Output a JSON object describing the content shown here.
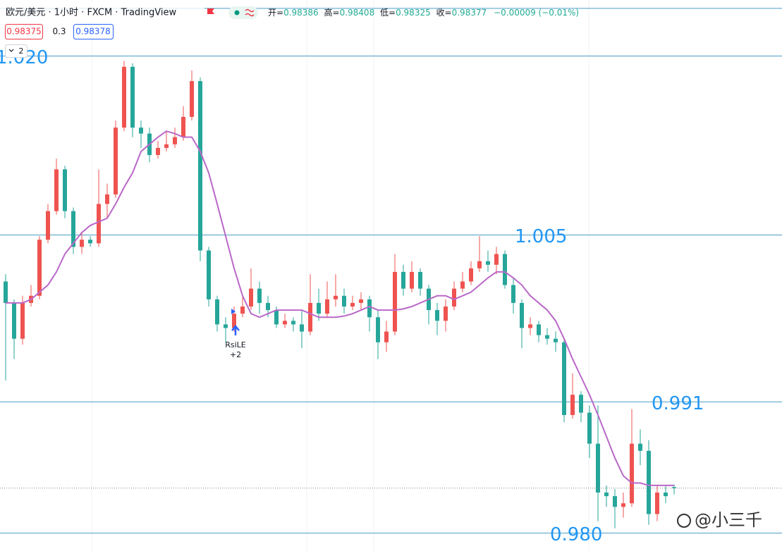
{
  "chart_data": {
    "type": "candlestick",
    "ylim": [
      0.9785,
      1.0247
    ],
    "up_color": "#ef5350",
    "down_color": "#26a69a",
    "open": [
      1.0011,
      0.9993,
      0.9963,
      0.9993,
      0.9999,
      1.0046,
      1.007,
      1.0105,
      1.007,
      1.004,
      1.0046,
      1.0043,
      1.0076,
      1.0084,
      1.014,
      1.0191,
      1.014,
      1.0135,
      1.0117,
      1.0123,
      1.0126,
      1.0132,
      1.0149,
      1.0179,
      1.0037,
      0.9996,
      0.9975,
      0.9972,
      0.9984,
      0.999,
      1.0005,
      0.9993,
      0.9987,
      0.9975,
      0.9978,
      0.9975,
      0.9969,
      0.9993,
      0.9984,
      0.9996,
      0.9999,
      0.999,
      0.9993,
      0.9996,
      0.9981,
      0.996,
      0.9969,
      1.0019,
      1.0005,
      1.0019,
      1.0005,
      0.9987,
      0.9978,
      0.999,
      1.0005,
      1.0011,
      1.0022,
      1.0028,
      1.0025,
      1.0034,
      1.0008,
      0.9993,
      0.9972,
      0.9975,
      0.9966,
      0.9963,
      0.996,
      0.9899,
      0.9916,
      0.9901,
      0.9875,
      0.9834,
      0.9831,
      0.9822,
      0.9825,
      0.9875,
      0.9869,
      0.9816,
      0.9834,
      0.98386
    ],
    "high": [
      1.0017,
      0.9996,
      0.9999,
      1.0008,
      1.0049,
      1.0076,
      1.0114,
      1.0108,
      1.0073,
      1.0052,
      1.0049,
      1.0105,
      1.0093,
      1.0146,
      1.0196,
      1.0194,
      1.0146,
      1.014,
      1.0129,
      1.0137,
      1.014,
      1.0158,
      1.0188,
      1.0182,
      1.004,
      0.9999,
      0.9981,
      0.999,
      0.9999,
      1.0022,
      1.0011,
      0.9999,
      0.999,
      0.9984,
      0.9981,
      0.9987,
      1.0017,
      1.0005,
      1.0011,
      1.0017,
      1.0005,
      0.9999,
      1.0002,
      0.9999,
      0.9987,
      0.9978,
      1.0034,
      1.0025,
      1.0028,
      1.0022,
      1.0008,
      0.9993,
      0.9996,
      1.0011,
      1.0019,
      1.0028,
      1.0049,
      1.0037,
      1.004,
      1.0037,
      1.0014,
      0.9996,
      0.9981,
      0.9978,
      0.9972,
      0.9969,
      0.9963,
      0.9934,
      0.9919,
      0.9907,
      0.9907,
      0.984,
      0.9837,
      0.9834,
      0.9904,
      0.9887,
      0.9878,
      0.984,
      0.984,
      0.98408
    ],
    "low": [
      0.9928,
      0.9946,
      0.9958,
      0.999,
      0.9996,
      1.0043,
      1.0067,
      1.0064,
      1.0034,
      1.0034,
      1.004,
      1.004,
      1.0064,
      1.0081,
      1.0137,
      1.0132,
      1.0123,
      1.0111,
      1.0114,
      1.012,
      1.0123,
      1.0129,
      1.0146,
      1.0028,
      0.999,
      0.9969,
      0.996,
      0.9969,
      0.9981,
      0.9987,
      0.9984,
      0.9981,
      0.9972,
      0.9972,
      0.9969,
      0.9955,
      0.9966,
      0.9978,
      0.9981,
      0.999,
      0.9984,
      0.9987,
      0.9987,
      0.9969,
      0.9946,
      0.9952,
      0.9966,
      0.9999,
      1.0002,
      0.9999,
      0.9975,
      0.9966,
      0.9969,
      0.9987,
      1.0002,
      1.0008,
      1.0019,
      1.0019,
      1.0017,
      1.0005,
      0.9984,
      0.9955,
      0.9966,
      0.996,
      0.9958,
      0.9952,
      0.9893,
      0.9896,
      0.9893,
      0.9863,
      0.981,
      0.9822,
      0.9804,
      0.9813,
      0.9822,
      0.9857,
      0.9807,
      0.981,
      0.9825,
      0.98325
    ],
    "close": [
      0.9993,
      0.9963,
      0.9993,
      0.9999,
      1.0046,
      1.007,
      1.0105,
      1.007,
      1.004,
      1.0046,
      1.0043,
      1.0076,
      1.0084,
      1.014,
      1.0191,
      1.014,
      1.0135,
      1.0117,
      1.0123,
      1.0126,
      1.0132,
      1.0149,
      1.0179,
      1.0037,
      0.9996,
      0.9975,
      0.9972,
      0.9984,
      0.999,
      1.0005,
      0.9993,
      0.9987,
      0.9975,
      0.9978,
      0.9975,
      0.9969,
      0.9993,
      0.9984,
      0.9996,
      0.9999,
      0.999,
      0.9993,
      0.9996,
      0.9981,
      0.996,
      0.9969,
      1.0019,
      1.0005,
      1.0019,
      1.0005,
      0.9987,
      0.9978,
      0.999,
      1.0005,
      1.0011,
      1.0022,
      1.0028,
      1.0025,
      1.0034,
      1.0008,
      0.9993,
      0.9972,
      0.9975,
      0.9966,
      0.9963,
      0.996,
      0.9899,
      0.9916,
      0.9901,
      0.9875,
      0.9834,
      0.9831,
      0.9822,
      0.9825,
      0.9875,
      0.9869,
      0.9816,
      0.9834,
      0.9831,
      0.98377
    ],
    "ma": {
      "color": "#ba68c8",
      "values": [
        0.9993,
        0.9993,
        0.9993,
        0.9996,
        1.0002,
        1.0008,
        1.0019,
        1.0034,
        1.0043,
        1.0052,
        1.0058,
        1.0061,
        1.0064,
        1.0076,
        1.009,
        1.0102,
        1.012,
        1.0126,
        1.0132,
        1.0137,
        1.0135,
        1.0132,
        1.0132,
        1.012,
        1.0102,
        1.0076,
        1.0049,
        1.0022,
        0.9999,
        0.9984,
        0.9981,
        0.9984,
        0.9987,
        0.9987,
        0.9987,
        0.9987,
        0.9984,
        0.9981,
        0.9981,
        0.9981,
        0.9982,
        0.9984,
        0.9987,
        0.999,
        0.9987,
        0.9987,
        0.9987,
        0.9988,
        0.999,
        0.9993,
        0.9996,
        0.9999,
        0.9999,
        0.9996,
        0.9999,
        1.0002,
        1.0008,
        1.0014,
        1.0019,
        1.0019,
        1.0014,
        1.0008,
        0.9999,
        0.9993,
        0.9987,
        0.9978,
        0.9963,
        0.9946,
        0.9931,
        0.9916,
        0.9899,
        0.9881,
        0.9863,
        0.9848,
        0.9842,
        0.9842,
        0.984,
        0.984,
        0.984,
        0.984
      ]
    },
    "level_color": "#4a9fc8",
    "label_color": "#2196f3",
    "levels": [
      {
        "price": 1.024
      },
      {
        "price": 1.02,
        "label": "1.020"
      },
      {
        "price": 1.005,
        "label": "1.005"
      },
      {
        "price": 0.991,
        "label": "0.991"
      },
      {
        "price": 0.98,
        "label": "0.980"
      }
    ]
  },
  "header": {
    "title": "欧元/美元 · 1小时 · FXCM · TradingView",
    "ohlc_labels": [
      "开=",
      "高=",
      "低=",
      "收="
    ],
    "change": "−0.00009 (−0.01%)",
    "bid": 0.98375,
    "spread": 0.3,
    "ask": 0.98378,
    "collapsed": 2
  },
  "signal": {
    "label": "RsiLE",
    "qty": "+2"
  },
  "watermark": "@小三千"
}
